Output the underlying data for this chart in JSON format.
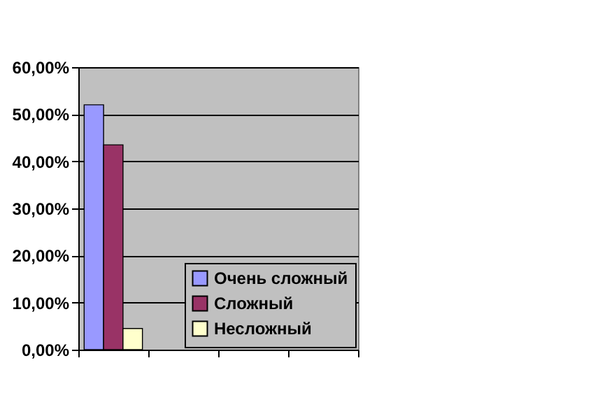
{
  "chart_data": {
    "type": "bar",
    "categories": [
      null,
      null,
      null,
      null
    ],
    "series": [
      {
        "name": "Очень сложный",
        "color": "#9999ff",
        "values": [
          52,
          null,
          null,
          null
        ]
      },
      {
        "name": "Сложный",
        "color": "#993366",
        "values": [
          43.5,
          null,
          null,
          null
        ]
      },
      {
        "name": "Несложный",
        "color": "#ffffcc",
        "values": [
          4.5,
          null,
          null,
          null
        ]
      }
    ],
    "ylim": [
      0,
      60
    ],
    "yticks": [
      {
        "value": 0,
        "label": "0,00%"
      },
      {
        "value": 10,
        "label": "10,00%"
      },
      {
        "value": 20,
        "label": "20,00%"
      },
      {
        "value": 30,
        "label": "30,00%"
      },
      {
        "value": 40,
        "label": "40,00%"
      },
      {
        "value": 50,
        "label": "50,00%"
      },
      {
        "value": 60,
        "label": "60,00%"
      }
    ],
    "grid": "y",
    "legend": "bottom right"
  }
}
